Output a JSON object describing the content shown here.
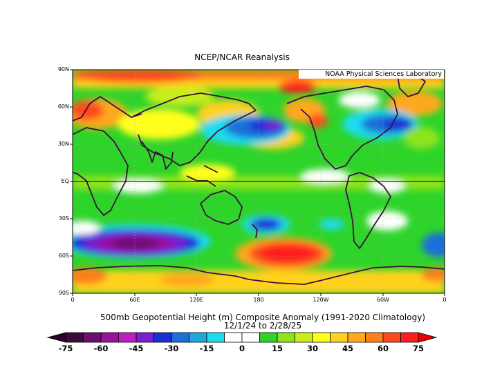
{
  "title": "NCEP/NCAR Reanalysis",
  "credit": "NOAA Physical Sciences Laboratory",
  "lat_labels": [
    "90N",
    "60N",
    "30N",
    "EQ",
    "30S",
    "60S",
    "90S"
  ],
  "lon_labels": [
    "0",
    "60E",
    "120E",
    "180",
    "120W",
    "60W",
    "0"
  ],
  "bottom_title": "500mb Geopotential Height (m) Composite Anomaly (1991-2020 Climatology)",
  "date_range": "12/1/24   to 2/28/25",
  "colorbar": {
    "labels": [
      "-75",
      "-60",
      "-45",
      "-30",
      "-15",
      "0",
      "15",
      "30",
      "45",
      "60",
      "75"
    ],
    "colors": [
      "#3d0b3a",
      "#6e0f6e",
      "#9b119b",
      "#c11ec1",
      "#7a1fd1",
      "#1a2fd6",
      "#1c6fd8",
      "#1ea8dc",
      "#1edcf0",
      "#ffffff",
      "#ffffff",
      "#2ed42a",
      "#8ee31c",
      "#c8ef1c",
      "#ffff1e",
      "#ffd21e",
      "#ffa81e",
      "#ff7e1e",
      "#ff4a1e",
      "#ff1e1e"
    ],
    "min_color": "#2a0328",
    "max_color": "#e60000"
  }
}
